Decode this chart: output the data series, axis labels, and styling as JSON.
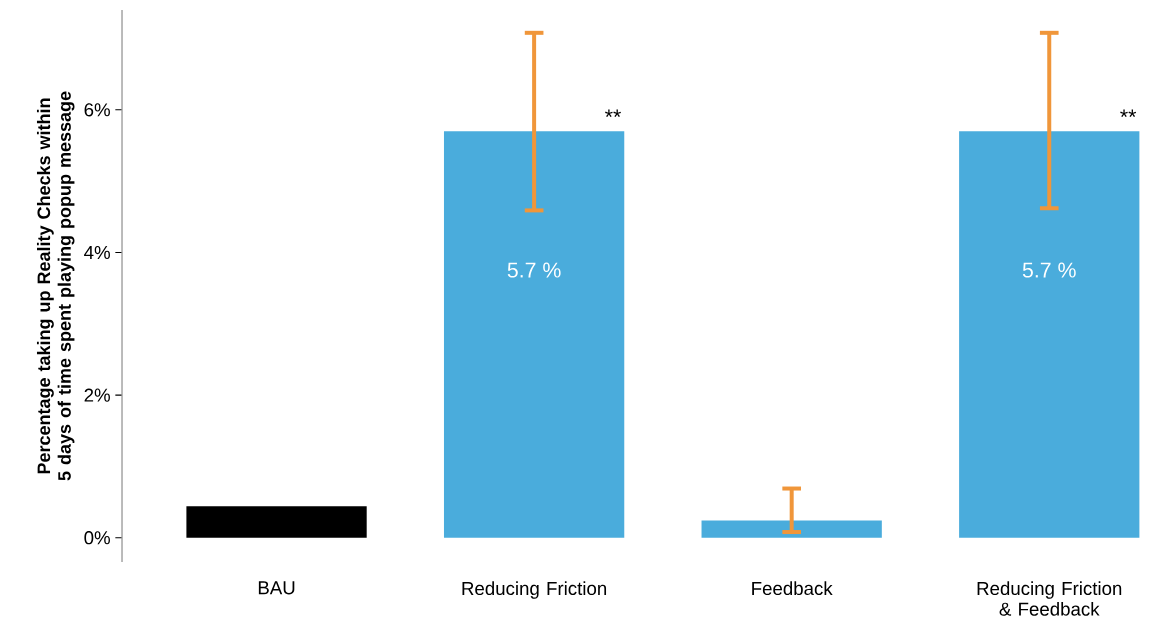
{
  "chart_data": {
    "type": "bar",
    "ylabel": "Percentage taking up Reality Checks within 5 days of time spent playing popup message",
    "categories": [
      "BAU",
      "Reducing Friction",
      "Feedback",
      "Reducing Friction & Feedback"
    ],
    "values": [
      0.44,
      5.7,
      0.24,
      5.7
    ],
    "colors": [
      "#000000",
      "#4aacdc",
      "#4aacdc",
      "#4aacdc"
    ],
    "errors": [
      null,
      [
        4.59,
        7.08
      ],
      [
        0.08,
        0.69
      ],
      [
        4.62,
        7.08
      ]
    ],
    "value_labels": [
      null,
      "5.7 %",
      null,
      "5.7 %"
    ],
    "ylim": [
      -0.34,
      7.4
    ],
    "yticks": [
      {
        "value": 0,
        "label": "0%"
      },
      {
        "value": 2,
        "label": "2%"
      },
      {
        "value": 4,
        "label": "4%"
      },
      {
        "value": 6,
        "label": "6%"
      }
    ],
    "annotations": [
      "**",
      "**"
    ]
  }
}
